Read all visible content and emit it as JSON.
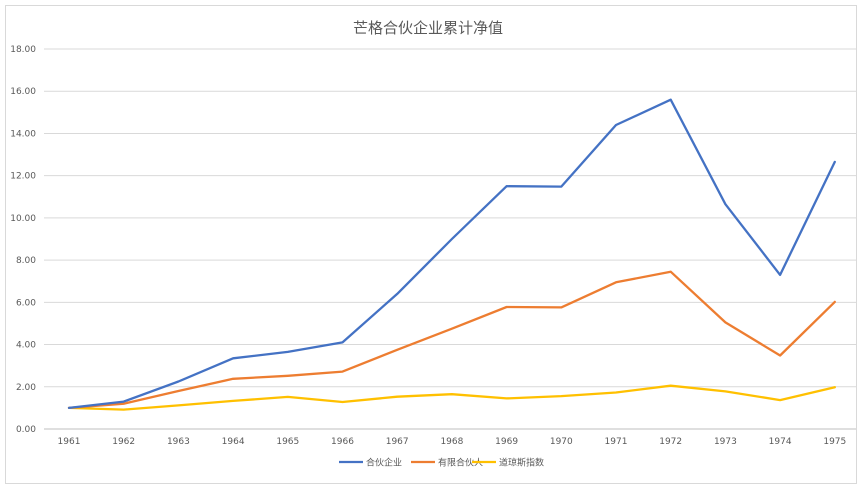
{
  "chart_data": {
    "type": "line",
    "title": "芒格合伙企业累计净值",
    "xlabel": "",
    "ylabel": "",
    "categories": [
      "1961",
      "1962",
      "1963",
      "1964",
      "1965",
      "1966",
      "1967",
      "1968",
      "1969",
      "1970",
      "1971",
      "1972",
      "1973",
      "1974",
      "1975"
    ],
    "ylim": [
      0,
      18
    ],
    "yticks": [
      "0.00",
      "2.00",
      "4.00",
      "6.00",
      "8.00",
      "10.00",
      "12.00",
      "14.00",
      "16.00",
      "18.00"
    ],
    "grid": true,
    "legend_position": "bottom",
    "series": [
      {
        "name": "合伙企业",
        "color": "#4472c4",
        "values": [
          1.0,
          1.3,
          2.25,
          3.35,
          3.65,
          4.1,
          6.4,
          9.0,
          11.5,
          11.48,
          14.4,
          15.6,
          10.65,
          7.3,
          12.65
        ]
      },
      {
        "name": "有限合伙人",
        "color": "#ed7d31",
        "values": [
          1.0,
          1.2,
          1.8,
          2.38,
          2.52,
          2.72,
          3.75,
          4.75,
          5.78,
          5.76,
          6.95,
          7.45,
          5.05,
          3.48,
          6.02
        ]
      },
      {
        "name": "道琼斯指数",
        "color": "#ffc000",
        "values": [
          1.0,
          0.92,
          1.12,
          1.33,
          1.52,
          1.28,
          1.53,
          1.65,
          1.45,
          1.56,
          1.73,
          2.05,
          1.78,
          1.37,
          1.98
        ]
      }
    ]
  }
}
